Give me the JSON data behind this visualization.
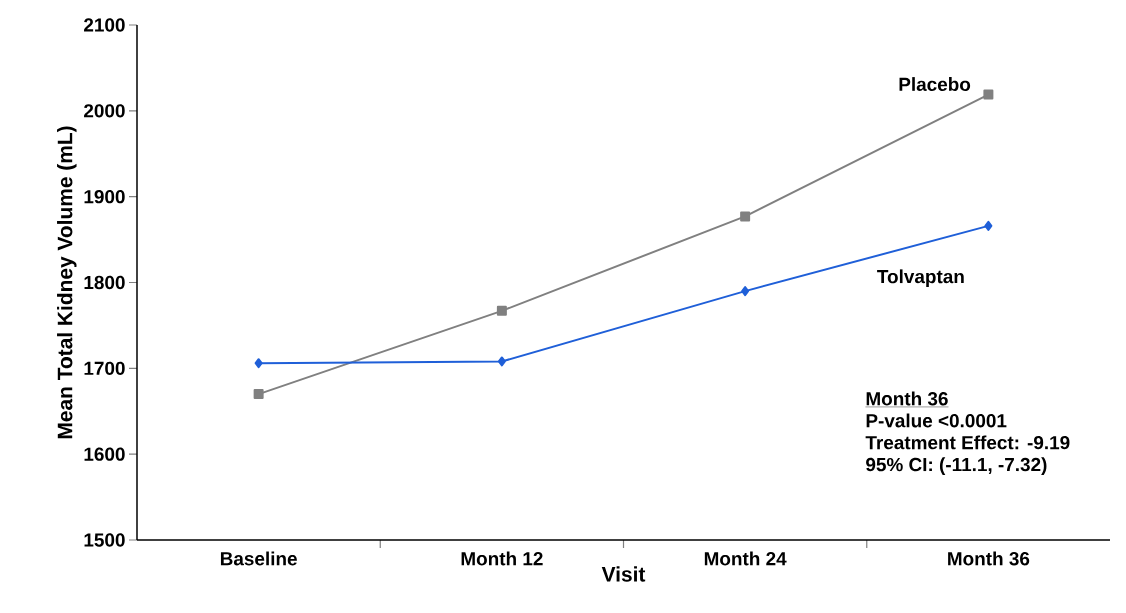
{
  "chart_data": {
    "type": "line",
    "xlabel": "Visit",
    "ylabel": "Mean Total  Kidney Volume (mL)",
    "categories": [
      "Baseline",
      "Month 12",
      "Month 24",
      "Month 36"
    ],
    "series": [
      {
        "name": "Placebo",
        "color": "#808080",
        "marker": "square",
        "values": [
          1670,
          1767,
          1877,
          2019
        ]
      },
      {
        "name": "Tolvaptan",
        "color": "#1f5fd8",
        "marker": "diamond",
        "values": [
          1706,
          1708,
          1790,
          1866
        ]
      }
    ],
    "ylim": [
      1500,
      2100
    ],
    "yticks": [
      1500,
      1600,
      1700,
      1800,
      1900,
      2000,
      2100
    ],
    "grid": false,
    "legend": false,
    "annotations": [
      "Month 36",
      "P-value <0.0001",
      "Treatment Effect: -9.19",
      "95% CI: (-11.1, -7.32)"
    ]
  }
}
